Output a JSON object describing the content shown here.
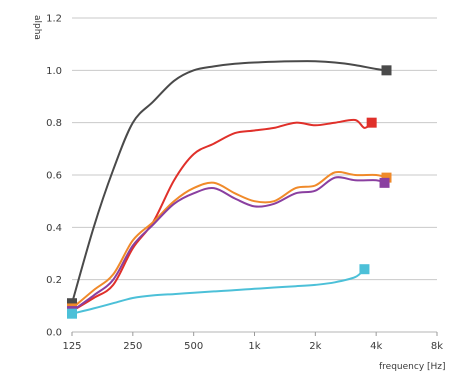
{
  "chart_data": {
    "type": "line",
    "title": "",
    "xlabel": "frequency [Hz]",
    "ylabel": "alpha",
    "x_scale": "log",
    "xlim": [
      125,
      8000
    ],
    "ylim": [
      0,
      1.2
    ],
    "grid": true,
    "legend": "none",
    "x_ticks": [
      {
        "value": 125,
        "label": "125"
      },
      {
        "value": 250,
        "label": "250"
      },
      {
        "value": 500,
        "label": "500"
      },
      {
        "value": 1000,
        "label": "1k"
      },
      {
        "value": 2000,
        "label": "2k"
      },
      {
        "value": 4000,
        "label": "4k"
      },
      {
        "value": 8000,
        "label": "8k"
      }
    ],
    "y_ticks": [
      {
        "value": 0.0,
        "label": "0.0"
      },
      {
        "value": 0.2,
        "label": "0.2"
      },
      {
        "value": 0.4,
        "label": "0.4"
      },
      {
        "value": 0.6,
        "label": "0.6"
      },
      {
        "value": 0.8,
        "label": "0.8"
      },
      {
        "value": 1.0,
        "label": "1.0"
      },
      {
        "value": 1.2,
        "label": "1.2"
      }
    ],
    "series": [
      {
        "color": "#4a4a4a",
        "x": [
          125,
          160,
          200,
          250,
          315,
          400,
          500,
          630,
          800,
          1000,
          1250,
          1600,
          2000,
          2500,
          3150,
          4000,
          4500
        ],
        "y": [
          0.11,
          0.4,
          0.62,
          0.8,
          0.88,
          0.96,
          1.0,
          1.015,
          1.025,
          1.03,
          1.033,
          1.035,
          1.035,
          1.03,
          1.02,
          1.005,
          1.0
        ]
      },
      {
        "color": "#e0302a",
        "x": [
          125,
          160,
          200,
          250,
          315,
          400,
          500,
          630,
          800,
          1000,
          1250,
          1600,
          2000,
          2500,
          3150,
          3500,
          3800
        ],
        "y": [
          0.08,
          0.13,
          0.18,
          0.32,
          0.42,
          0.58,
          0.68,
          0.72,
          0.76,
          0.77,
          0.78,
          0.8,
          0.79,
          0.8,
          0.81,
          0.78,
          0.8
        ]
      },
      {
        "color": "#f08a2a",
        "x": [
          125,
          160,
          200,
          250,
          315,
          400,
          500,
          630,
          800,
          1000,
          1250,
          1600,
          2000,
          2500,
          3150,
          4000,
          4500
        ],
        "y": [
          0.09,
          0.16,
          0.22,
          0.35,
          0.42,
          0.5,
          0.55,
          0.57,
          0.53,
          0.5,
          0.5,
          0.55,
          0.56,
          0.61,
          0.6,
          0.6,
          0.59
        ]
      },
      {
        "color": "#8a3fa0",
        "x": [
          125,
          160,
          200,
          250,
          315,
          400,
          500,
          630,
          800,
          1000,
          1250,
          1600,
          2000,
          2500,
          3150,
          4000,
          4400
        ],
        "y": [
          0.08,
          0.14,
          0.2,
          0.33,
          0.41,
          0.49,
          0.53,
          0.55,
          0.51,
          0.48,
          0.49,
          0.53,
          0.54,
          0.59,
          0.58,
          0.58,
          0.57
        ]
      },
      {
        "color": "#4cc0d8",
        "x": [
          125,
          160,
          200,
          250,
          315,
          400,
          500,
          630,
          800,
          1000,
          1250,
          1600,
          2000,
          2500,
          3150,
          3500
        ],
        "y": [
          0.07,
          0.09,
          0.11,
          0.13,
          0.14,
          0.145,
          0.15,
          0.155,
          0.16,
          0.165,
          0.17,
          0.175,
          0.18,
          0.19,
          0.21,
          0.24
        ]
      }
    ]
  }
}
